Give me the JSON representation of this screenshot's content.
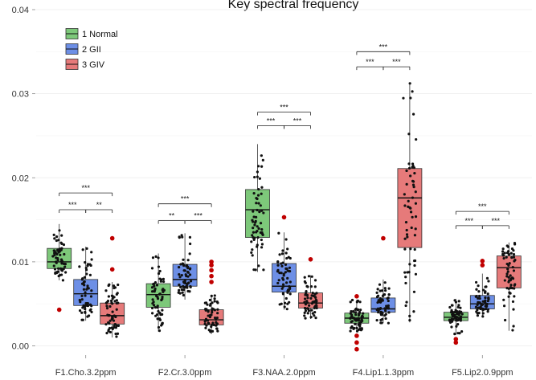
{
  "chart_data": {
    "type": "boxplot",
    "title": "Key spectral frequency",
    "xlabel": "",
    "ylabel": "",
    "ylim": [
      -0.001,
      0.04
    ],
    "yticks": [
      0.0,
      0.01,
      0.02,
      0.03,
      0.04
    ],
    "ytick_labels": [
      "0.00",
      "0.01",
      "0.02",
      "0.03",
      "0.04"
    ],
    "grid": true,
    "legend_position": "top-left",
    "categories": [
      "F1.Cho.3.2ppm",
      "F2.Cr.3.0ppm",
      "F3.NAA.2.0ppm",
      "F4.Lip1.1.3ppm",
      "F5.Lip2.0.9ppm"
    ],
    "series": [
      {
        "name": "1 Normal",
        "color": "#7dc87a",
        "boxes": [
          {
            "lower_whisker": 0.0078,
            "q1": 0.0092,
            "median": 0.01,
            "q3": 0.0116,
            "upper_whisker": 0.0145,
            "outliers": [
              0.0043
            ]
          },
          {
            "lower_whisker": 0.0017,
            "q1": 0.0046,
            "median": 0.0061,
            "q3": 0.0074,
            "upper_whisker": 0.011,
            "outliers": []
          },
          {
            "lower_whisker": 0.0088,
            "q1": 0.0129,
            "median": 0.0162,
            "q3": 0.0186,
            "upper_whisker": 0.024,
            "outliers": []
          },
          {
            "lower_whisker": 0.0017,
            "q1": 0.0027,
            "median": 0.0033,
            "q3": 0.0039,
            "upper_whisker": 0.0055,
            "outliers": [
              0.0059,
              0.0012,
              0.0004,
              -0.0004
            ]
          },
          {
            "lower_whisker": 0.0013,
            "q1": 0.003,
            "median": 0.0034,
            "q3": 0.004,
            "upper_whisker": 0.0056,
            "outliers": [
              0.0008,
              0.0004
            ]
          }
        ]
      },
      {
        "name": "2 GII",
        "color": "#6d8fe6",
        "boxes": [
          {
            "lower_whisker": 0.003,
            "q1": 0.0048,
            "median": 0.0062,
            "q3": 0.0079,
            "upper_whisker": 0.0118,
            "outliers": []
          },
          {
            "lower_whisker": 0.0055,
            "q1": 0.0071,
            "median": 0.0079,
            "q3": 0.0097,
            "upper_whisker": 0.0134,
            "outliers": []
          },
          {
            "lower_whisker": 0.0043,
            "q1": 0.0064,
            "median": 0.0071,
            "q3": 0.0098,
            "upper_whisker": 0.0135,
            "outliers": [
              0.0153
            ]
          },
          {
            "lower_whisker": 0.0027,
            "q1": 0.004,
            "median": 0.0044,
            "q3": 0.0057,
            "upper_whisker": 0.0079,
            "outliers": [
              0.0128
            ]
          },
          {
            "lower_whisker": 0.0034,
            "q1": 0.0044,
            "median": 0.005,
            "q3": 0.006,
            "upper_whisker": 0.0086,
            "outliers": [
              0.0101,
              0.0096
            ]
          }
        ]
      },
      {
        "name": "3 GIV",
        "color": "#e67a7a",
        "boxes": [
          {
            "lower_whisker": 0.001,
            "q1": 0.0026,
            "median": 0.0036,
            "q3": 0.0051,
            "upper_whisker": 0.0076,
            "outliers": [
              0.0128,
              0.0091
            ]
          },
          {
            "lower_whisker": 0.0014,
            "q1": 0.0025,
            "median": 0.0031,
            "q3": 0.0043,
            "upper_whisker": 0.006,
            "outliers": [
              0.01,
              0.0096,
              0.009,
              0.0083,
              0.0076
            ]
          },
          {
            "lower_whisker": 0.0032,
            "q1": 0.0045,
            "median": 0.0051,
            "q3": 0.0063,
            "upper_whisker": 0.0084,
            "outliers": [
              0.0103
            ]
          },
          {
            "lower_whisker": 0.0028,
            "q1": 0.0117,
            "median": 0.0176,
            "q3": 0.0211,
            "upper_whisker": 0.0313,
            "outliers": []
          },
          {
            "lower_whisker": 0.0018,
            "q1": 0.0069,
            "median": 0.0093,
            "q3": 0.0107,
            "upper_whisker": 0.0123,
            "outliers": []
          }
        ]
      }
    ],
    "significance": [
      {
        "category": 0,
        "pairs": [
          {
            "from": 0,
            "to": 2,
            "y": 0.0182,
            "label": "***"
          },
          {
            "from": 0,
            "to": 1,
            "y": 0.0162,
            "label": "***"
          },
          {
            "from": 1,
            "to": 2,
            "y": 0.0162,
            "label": "**"
          }
        ]
      },
      {
        "category": 1,
        "pairs": [
          {
            "from": 0,
            "to": 2,
            "y": 0.0169,
            "label": "***"
          },
          {
            "from": 0,
            "to": 1,
            "y": 0.0149,
            "label": "**"
          },
          {
            "from": 1,
            "to": 2,
            "y": 0.0149,
            "label": "***"
          }
        ]
      },
      {
        "category": 2,
        "pairs": [
          {
            "from": 0,
            "to": 2,
            "y": 0.0278,
            "label": "***"
          },
          {
            "from": 0,
            "to": 1,
            "y": 0.0262,
            "label": "***"
          },
          {
            "from": 1,
            "to": 2,
            "y": 0.0262,
            "label": "***"
          }
        ]
      },
      {
        "category": 3,
        "pairs": [
          {
            "from": 0,
            "to": 2,
            "y": 0.035,
            "label": "***"
          },
          {
            "from": 0,
            "to": 1,
            "y": 0.0332,
            "label": "***"
          },
          {
            "from": 1,
            "to": 2,
            "y": 0.0332,
            "label": "***"
          }
        ]
      },
      {
        "category": 4,
        "pairs": [
          {
            "from": 0,
            "to": 2,
            "y": 0.016,
            "label": "***"
          },
          {
            "from": 0,
            "to": 1,
            "y": 0.0143,
            "label": "***"
          },
          {
            "from": 1,
            "to": 2,
            "y": 0.0143,
            "label": "***"
          }
        ]
      }
    ]
  }
}
